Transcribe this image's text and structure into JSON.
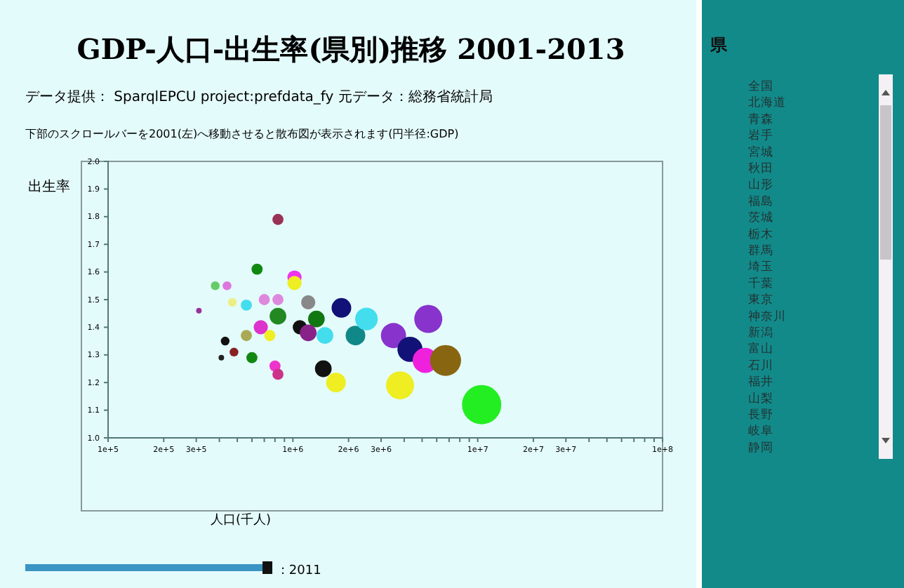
{
  "chart_data": {
    "type": "bubble",
    "title": "GDP-人口-出生率(県別)推移 2001-2013",
    "xlabel": "人口(千人)",
    "ylabel": "出生率",
    "annotations": [
      "データ提供： SparqlEPCU project:prefdata_fy 元データ：総務省統計局",
      "下部のスクロールバーを2001(左)へ移動させると散布図が表示されます(円半径:GDP)",
      "県",
      "全国",
      "北海道",
      "青森",
      "岩手",
      "宮城",
      "秋田",
      "山形",
      "福島",
      "茨城",
      "栃木",
      "群馬",
      "埼玉",
      "千葉",
      "東京",
      "神奈川",
      "新潟",
      "富山",
      "石川",
      "福井",
      "山梨",
      "長野",
      "岐阜",
      "静岡",
      ": 2011"
    ],
    "log": "x",
    "xlim": [
      100000,
      100000000
    ],
    "xticks": [
      {
        "value": 100000,
        "label": "1e+5"
      },
      {
        "value": 200000,
        "label": "2e+5"
      },
      {
        "value": 300000,
        "label": "3e+5"
      },
      {
        "value": 400000,
        "label": null
      },
      {
        "value": 500000,
        "label": null
      },
      {
        "value": 600000,
        "label": null
      },
      {
        "value": 700000,
        "label": null
      },
      {
        "value": 800000,
        "label": null
      },
      {
        "value": 900000,
        "label": null
      },
      {
        "value": 1000000,
        "label": "1e+6"
      },
      {
        "value": 2000000,
        "label": "2e+6"
      },
      {
        "value": 3000000,
        "label": "3e+6"
      },
      {
        "value": 4000000,
        "label": null
      },
      {
        "value": 5000000,
        "label": null
      },
      {
        "value": 6000000,
        "label": null
      },
      {
        "value": 7000000,
        "label": null
      },
      {
        "value": 8000000,
        "label": null
      },
      {
        "value": 9000000,
        "label": null
      },
      {
        "value": 10000000,
        "label": "1e+7"
      },
      {
        "value": 20000000,
        "label": "2e+7"
      },
      {
        "value": 30000000,
        "label": "3e+7"
      },
      {
        "value": 40000000,
        "label": null
      },
      {
        "value": 50000000,
        "label": null
      },
      {
        "value": 60000000,
        "label": null
      },
      {
        "value": 70000000,
        "label": null
      },
      {
        "value": 80000000,
        "label": null
      },
      {
        "value": 90000000,
        "label": null
      },
      {
        "value": 100000000,
        "label": "1e+8"
      }
    ],
    "ylim": [
      1.0,
      2.0
    ],
    "yticks": [
      {
        "value": 1.0,
        "label": "1.0"
      },
      {
        "value": 1.1,
        "label": "1.1"
      },
      {
        "value": 1.2,
        "label": "1.2"
      },
      {
        "value": 1.3,
        "label": "1.3"
      },
      {
        "value": 1.4,
        "label": "1.4"
      },
      {
        "value": 1.5,
        "label": "1.5"
      },
      {
        "value": 1.6,
        "label": "1.6"
      },
      {
        "value": 1.7,
        "label": "1.7"
      },
      {
        "value": 1.8,
        "label": "1.8"
      },
      {
        "value": 1.9,
        "label": "1.9"
      },
      {
        "value": 2.0,
        "label": "2.0"
      }
    ],
    "x": [
      830000,
      640000,
      380000,
      440000,
      470000,
      560000,
      700000,
      830000,
      1020000,
      1020000,
      1210000,
      310000,
      830000,
      1090000,
      1340000,
      1210000,
      1830000,
      2180000,
      1490000,
      670000,
      560000,
      750000,
      430000,
      480000,
      410000,
      600000,
      800000,
      830000,
      1460000,
      1710000,
      2500000,
      3500000,
      5400000,
      4300000,
      5200000,
      6700000,
      3800000,
      10500000
    ],
    "values": [
      1.79,
      1.61,
      1.55,
      1.55,
      1.49,
      1.48,
      1.5,
      1.5,
      1.58,
      1.56,
      1.49,
      1.46,
      1.44,
      1.4,
      1.43,
      1.38,
      1.47,
      1.37,
      1.37,
      1.4,
      1.37,
      1.37,
      1.35,
      1.31,
      1.29,
      1.29,
      1.26,
      1.23,
      1.25,
      1.2,
      1.43,
      1.37,
      1.43,
      1.32,
      1.28,
      1.28,
      1.19,
      1.12
    ],
    "sizes": [
      0.08,
      0.08,
      0.05,
      0.05,
      0.05,
      0.08,
      0.08,
      0.08,
      0.13,
      0.13,
      0.13,
      0.02,
      0.18,
      0.13,
      0.18,
      0.18,
      0.25,
      0.25,
      0.18,
      0.13,
      0.08,
      0.08,
      0.05,
      0.05,
      0.02,
      0.08,
      0.08,
      0.08,
      0.18,
      0.25,
      0.33,
      0.41,
      0.51,
      0.41,
      0.41,
      0.62,
      0.51,
      1
    ],
    "colors": [
      "#993355",
      "#118811",
      "#66cc66",
      "#dd77dd",
      "#eeee88",
      "#44ddee",
      "#dd88dd",
      "#dd88dd",
      "#ee33ee",
      "#eeee22",
      "#888888",
      "#993399",
      "#228822",
      "#111111",
      "#117711",
      "#882288",
      "#111177",
      "#118888",
      "#44ddee",
      "#dd33cc",
      "#aaaa55",
      "#eeee22",
      "#111111",
      "#882222",
      "#222222",
      "#118811",
      "#ee33cc",
      "#cc3388",
      "#111111",
      "#eeee22",
      "#44ddee",
      "#8833cc",
      "#8833cc",
      "#111177",
      "#ee22dd",
      "#886611",
      "#eeee22",
      "#22ee22"
    ]
  }
}
